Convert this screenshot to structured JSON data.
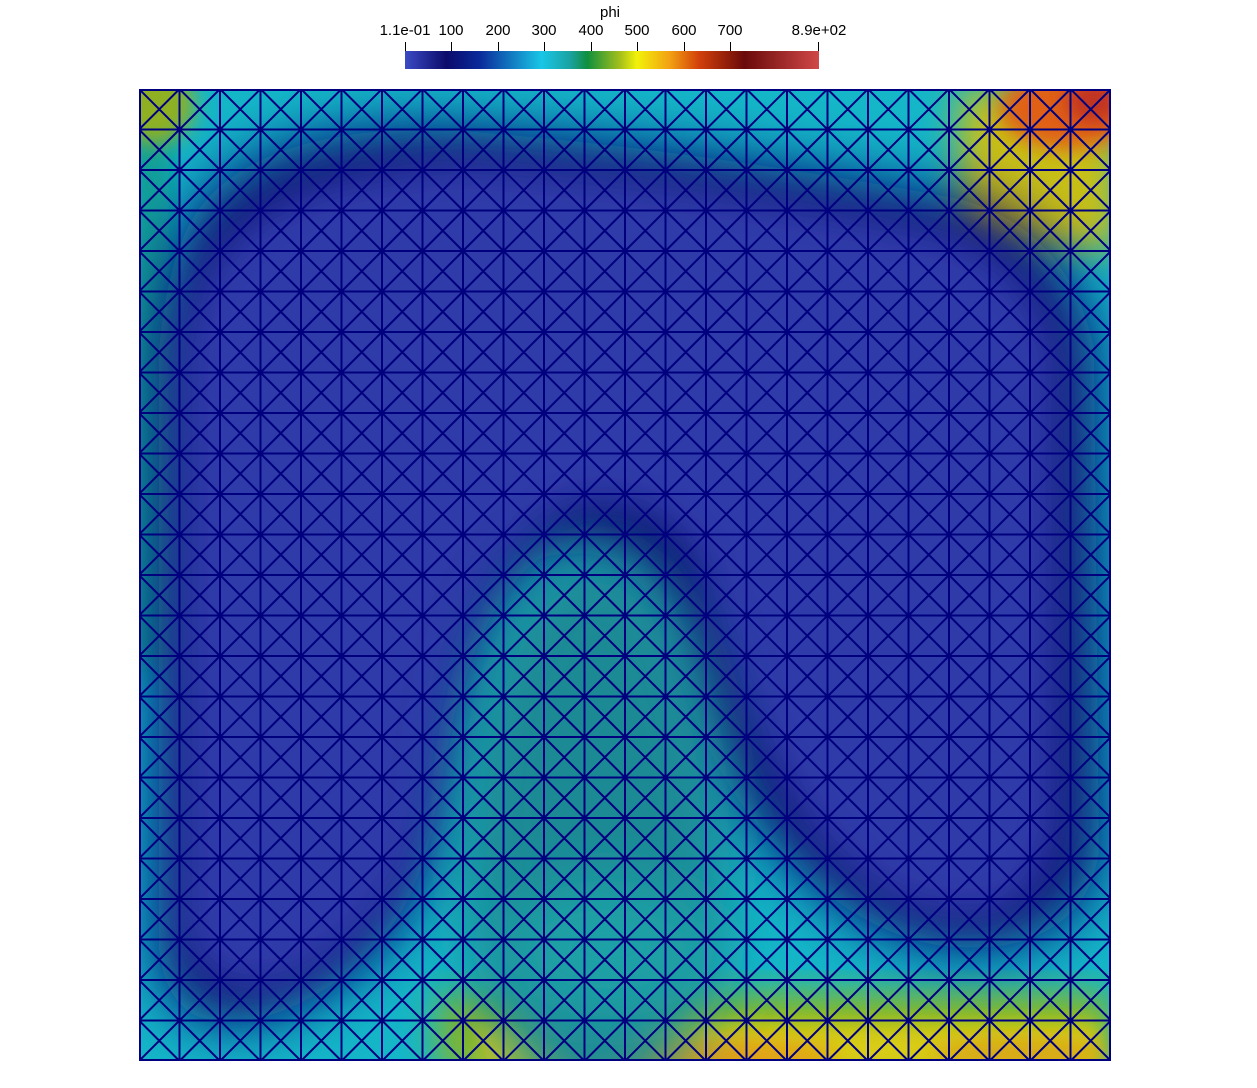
{
  "colorbar": {
    "title": "phi",
    "tick_labels": [
      "1.1e-01",
      "100",
      "200",
      "300",
      "400",
      "500",
      "600",
      "700",
      "8.9e+02"
    ],
    "tick_values": [
      0.11,
      100,
      200,
      300,
      400,
      500,
      600,
      700,
      890
    ],
    "range": [
      0.11,
      890
    ]
  },
  "field": {
    "mesh_divisions": 24,
    "mesh_color": "#00007f",
    "colormap": [
      "#3b4bc4",
      "#0b0b6b",
      "#19c6e6",
      "#0f8f3f",
      "#f2f20a",
      "#f2a012",
      "#6a0a0a",
      "#d04848"
    ]
  }
}
